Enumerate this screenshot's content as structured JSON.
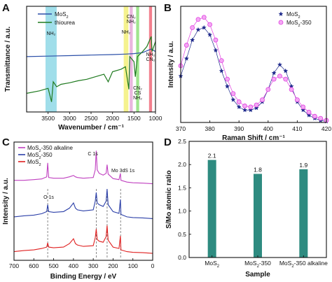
{
  "chart_data": [
    {
      "panel": "A",
      "type": "line",
      "xlabel": "Wavenumber / cm⁻¹",
      "ylabel": "Transmittance / a.u.",
      "xlim": [
        4000,
        1000
      ],
      "xticks": [
        3500,
        3000,
        2500,
        2000,
        1500,
        1000
      ],
      "xtick_labels": [
        "3500",
        "3000",
        "2500",
        "2000",
        "1500",
        "1000"
      ],
      "legend": [
        "MoS₂",
        "thiourea"
      ],
      "legend_position": "top-left",
      "colors": {
        "MoS2": "#2b4fa8",
        "thiourea": "#1f7a1f"
      },
      "bands": [
        {
          "label": "NH₂",
          "from": 3560,
          "to": 3300,
          "color": "#8fd8e6"
        },
        {
          "label": "NH₂",
          "from": 1740,
          "to": 1630,
          "color": "#f3f07a"
        },
        {
          "label": "CN₂ NH₂",
          "from": 1600,
          "to": 1530,
          "color": "#e6a8d8"
        },
        {
          "label": "CN₂ CS NH₂",
          "from": 1450,
          "to": 1380,
          "color": "#8fe07a"
        },
        {
          "label": "NH₂ CN₂",
          "from": 1150,
          "to": 1080,
          "color": "#f06a7a"
        }
      ],
      "series": [
        {
          "name": "MoS₂",
          "x": [
            4000,
            3500,
            3000,
            2500,
            2000,
            1700,
            1500,
            1300,
            1100,
            1000
          ],
          "y": [
            0.3,
            0.31,
            0.32,
            0.33,
            0.34,
            0.35,
            0.36,
            0.38,
            0.45,
            0.4
          ]
        },
        {
          "name": "thiourea",
          "x": [
            4000,
            3700,
            3500,
            3420,
            3380,
            3300,
            3200,
            3000,
            2800,
            2600,
            2400,
            2200,
            2100,
            2000,
            1800,
            1700,
            1620,
            1600,
            1500,
            1470,
            1420,
            1300,
            1200,
            1100,
            1080,
            1000
          ],
          "y": [
            -0.43,
            -0.38,
            -0.33,
            -0.6,
            -0.2,
            -0.3,
            -0.25,
            -0.22,
            -0.18,
            -0.15,
            -0.1,
            -0.05,
            -0.2,
            0.0,
            0.05,
            0.1,
            -0.35,
            0.3,
            0.2,
            -0.1,
            0.3,
            0.4,
            0.5,
            0.7,
            0.4,
            0.6
          ]
        }
      ]
    },
    {
      "panel": "B",
      "type": "scatter",
      "xlabel": "Raman Shift / cm⁻¹",
      "ylabel": "Intensity / a.u.",
      "xlim": [
        370,
        420
      ],
      "xticks": [
        370,
        380,
        390,
        400,
        410,
        420
      ],
      "legend": [
        "MoS₂",
        "MoS₂-350"
      ],
      "legend_position": "top-right",
      "colors": {
        "MoS2": "#1f2a8c",
        "MoS2-350": "#e040e0"
      },
      "series": [
        {
          "name": "MoS₂",
          "marker": "star",
          "x": [
            370,
            372,
            374,
            376,
            378,
            380,
            382,
            384,
            386,
            388,
            390,
            392,
            394,
            396,
            398,
            400,
            402,
            404,
            406,
            408,
            410,
            412,
            414,
            416,
            418,
            420
          ],
          "y": [
            0.45,
            0.62,
            0.8,
            0.9,
            0.92,
            0.85,
            0.7,
            0.5,
            0.35,
            0.22,
            0.15,
            0.12,
            0.12,
            0.14,
            0.2,
            0.32,
            0.48,
            0.56,
            0.5,
            0.35,
            0.2,
            0.12,
            0.07,
            0.04,
            0.02,
            0.01
          ]
        },
        {
          "name": "MoS₂-350",
          "marker": "circle",
          "x": [
            370,
            372,
            374,
            376,
            378,
            380,
            382,
            384,
            386,
            388,
            390,
            392,
            394,
            396,
            398,
            400,
            402,
            404,
            406,
            408,
            410,
            412,
            414,
            416,
            418,
            420
          ],
          "y": [
            0.55,
            0.75,
            0.92,
            1.0,
            1.02,
            0.95,
            0.8,
            0.6,
            0.42,
            0.28,
            0.2,
            0.16,
            0.15,
            0.17,
            0.22,
            0.32,
            0.42,
            0.45,
            0.42,
            0.32,
            0.22,
            0.15,
            0.1,
            0.06,
            0.04,
            0.02
          ]
        }
      ]
    },
    {
      "panel": "C",
      "type": "line",
      "xlabel": "Binding Energy / eV",
      "ylabel": "Intensity / a.u.",
      "xlim": [
        700,
        0
      ],
      "xticks": [
        700,
        600,
        500,
        400,
        300,
        200,
        100,
        0
      ],
      "legend": [
        "MoS₂-350 alkaline",
        "MoS₂-350",
        "MoS₂"
      ],
      "legend_position": "top-left",
      "colors": {
        "alkaline": "#c040c0",
        "MoS2-350": "#2b3fa8",
        "MoS2": "#e02020"
      },
      "annotations": [
        {
          "label": "O 1s",
          "x": 530
        },
        {
          "label": "C 1s",
          "x": 285
        },
        {
          "label": "Mo 3d",
          "x": 230
        },
        {
          "label": "S 1s",
          "x": 162
        }
      ],
      "series": [
        {
          "name": "MoS₂-350 alkaline",
          "offset": 2.0,
          "x": [
            700,
            650,
            600,
            560,
            535,
            530,
            525,
            500,
            450,
            420,
            400,
            390,
            380,
            350,
            300,
            290,
            285,
            280,
            270,
            250,
            235,
            230,
            225,
            200,
            170,
            163,
            160,
            130,
            100,
            50,
            0
          ],
          "y": [
            0.1,
            0.1,
            0.12,
            0.14,
            0.2,
            0.6,
            0.18,
            0.16,
            0.16,
            0.2,
            0.24,
            0.2,
            0.18,
            0.16,
            0.18,
            0.4,
            0.95,
            0.4,
            0.3,
            0.25,
            0.3,
            0.55,
            0.28,
            0.15,
            0.12,
            0.3,
            0.1,
            0.05,
            0.03,
            0.02,
            0.0
          ]
        },
        {
          "name": "MoS₂-350",
          "offset": 1.0,
          "x": [
            700,
            650,
            600,
            560,
            535,
            530,
            525,
            500,
            450,
            420,
            400,
            390,
            380,
            350,
            300,
            290,
            285,
            280,
            270,
            250,
            235,
            230,
            225,
            200,
            170,
            163,
            160,
            130,
            100,
            50,
            0
          ],
          "y": [
            0.05,
            0.08,
            0.1,
            0.14,
            0.2,
            0.4,
            0.2,
            0.18,
            0.2,
            0.3,
            0.45,
            0.3,
            0.25,
            0.22,
            0.25,
            0.5,
            0.75,
            0.45,
            0.4,
            0.35,
            0.5,
            0.85,
            0.4,
            0.2,
            0.15,
            0.55,
            0.12,
            0.05,
            0.03,
            0.02,
            0.0
          ]
        },
        {
          "name": "MoS₂",
          "offset": 0.0,
          "x": [
            700,
            650,
            600,
            560,
            535,
            530,
            525,
            500,
            450,
            420,
            400,
            390,
            380,
            350,
            300,
            290,
            285,
            280,
            270,
            250,
            235,
            230,
            225,
            200,
            170,
            163,
            160,
            130,
            100,
            50,
            0
          ],
          "y": [
            0.05,
            0.08,
            0.1,
            0.14,
            0.18,
            0.3,
            0.18,
            0.16,
            0.18,
            0.28,
            0.42,
            0.28,
            0.24,
            0.2,
            0.22,
            0.45,
            0.7,
            0.4,
            0.35,
            0.32,
            0.48,
            0.8,
            0.38,
            0.18,
            0.14,
            0.5,
            0.1,
            0.05,
            0.03,
            0.02,
            0.0
          ]
        }
      ]
    },
    {
      "panel": "D",
      "type": "bar",
      "xlabel": "Sample",
      "ylabel": "S/Mo atomic ratio",
      "ylim": [
        0.0,
        2.5
      ],
      "yticks": [
        0.0,
        0.5,
        1.0,
        1.5,
        2.0,
        2.5
      ],
      "ytick_labels": [
        "0.0",
        "0.5",
        "1.0",
        "1.5",
        "2.0",
        "2.5"
      ],
      "categories": [
        "MoS₂",
        "MoS₂-350",
        "MoS₂-350 alkaline"
      ],
      "values": [
        2.1,
        1.8,
        1.9
      ],
      "value_labels": [
        "2.1",
        "1.8",
        "1.9"
      ],
      "bar_color": "#2e8b80"
    }
  ]
}
